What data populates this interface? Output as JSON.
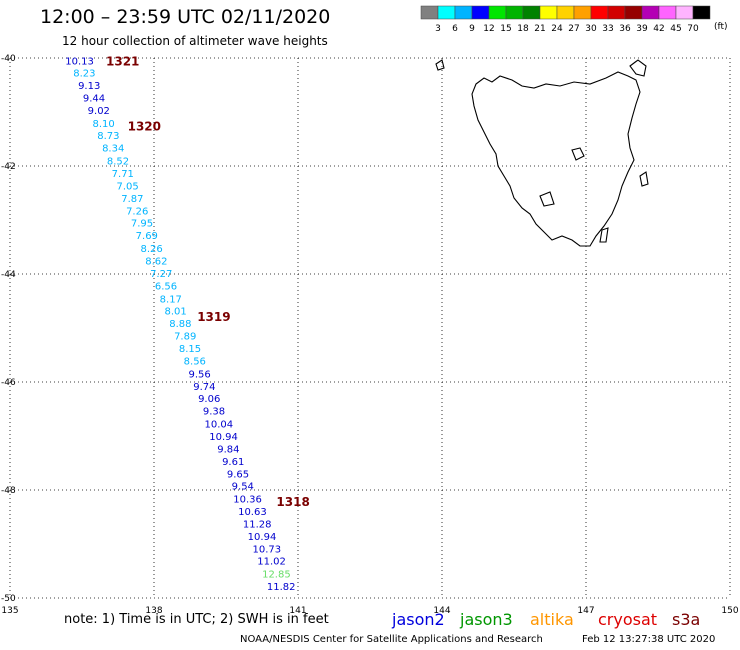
{
  "header": {
    "title": "12:00 – 23:59 UTC 02/11/2020",
    "subtitle": "12 hour collection of altimeter wave heights"
  },
  "colorbar": {
    "colors": [
      "#808080",
      "#00ffff",
      "#00b4ff",
      "#0000ff",
      "#00e600",
      "#00b400",
      "#008200",
      "#ffff00",
      "#ffd200",
      "#ffa000",
      "#ff0000",
      "#d20000",
      "#960000",
      "#b400b4",
      "#ff64ff",
      "#ffb4ff",
      "#000000"
    ],
    "labels": [
      "3",
      "6",
      "9",
      "12",
      "15",
      "18",
      "21",
      "24",
      "27",
      "30",
      "33",
      "36",
      "39",
      "42",
      "45",
      "70"
    ],
    "unit": "(ft)"
  },
  "chart_data": {
    "type": "scatter",
    "xlabel": "",
    "ylabel": "",
    "xlim": [
      135,
      150
    ],
    "ylim": [
      -50,
      -40
    ],
    "xticks": [
      "135",
      "138",
      "141",
      "144",
      "147",
      "150"
    ],
    "yticks": [
      "-40",
      "-42",
      "-44",
      "-46",
      "-48",
      "-50"
    ],
    "grid": true,
    "series": [
      {
        "name": "jason2",
        "points": [
          {
            "lon": 136.45,
            "lat": -40.05,
            "swh": "10.13",
            "color": "#0000cd"
          },
          {
            "lon": 136.55,
            "lat": -40.27,
            "swh": "8.23",
            "color": "#00b4ff"
          },
          {
            "lon": 136.65,
            "lat": -40.5,
            "swh": "9.13",
            "color": "#0000cd"
          },
          {
            "lon": 136.75,
            "lat": -40.73,
            "swh": "9.44",
            "color": "#0000cd"
          },
          {
            "lon": 136.85,
            "lat": -40.96,
            "swh": "9.02",
            "color": "#0000cd"
          },
          {
            "lon": 136.95,
            "lat": -41.2,
            "swh": "8.10",
            "color": "#00b4ff"
          },
          {
            "lon": 137.05,
            "lat": -41.43,
            "swh": "8.73",
            "color": "#00b4ff"
          },
          {
            "lon": 137.15,
            "lat": -41.66,
            "swh": "8.34",
            "color": "#00b4ff"
          },
          {
            "lon": 137.25,
            "lat": -41.9,
            "swh": "8.52",
            "color": "#00b4ff"
          },
          {
            "lon": 137.35,
            "lat": -42.13,
            "swh": "7.71",
            "color": "#00b4ff"
          },
          {
            "lon": 137.45,
            "lat": -42.36,
            "swh": "7.05",
            "color": "#00b4ff"
          },
          {
            "lon": 137.55,
            "lat": -42.59,
            "swh": "7.87",
            "color": "#00b4ff"
          },
          {
            "lon": 137.65,
            "lat": -42.82,
            "swh": "7.26",
            "color": "#00b4ff"
          },
          {
            "lon": 137.75,
            "lat": -43.05,
            "swh": "7.95",
            "color": "#00b4ff"
          },
          {
            "lon": 137.85,
            "lat": -43.28,
            "swh": "7.69",
            "color": "#00b4ff"
          },
          {
            "lon": 137.95,
            "lat": -43.52,
            "swh": "8.26",
            "color": "#00b4ff"
          },
          {
            "lon": 138.05,
            "lat": -43.75,
            "swh": "8.62",
            "color": "#00b4ff"
          },
          {
            "lon": 138.15,
            "lat": -43.98,
            "swh": "7.27",
            "color": "#00b4ff"
          },
          {
            "lon": 138.25,
            "lat": -44.21,
            "swh": "6.56",
            "color": "#00b4ff"
          },
          {
            "lon": 138.35,
            "lat": -44.45,
            "swh": "8.17",
            "color": "#00b4ff"
          },
          {
            "lon": 138.45,
            "lat": -44.68,
            "swh": "8.01",
            "color": "#00b4ff"
          },
          {
            "lon": 138.55,
            "lat": -44.91,
            "swh": "8.88",
            "color": "#00b4ff"
          },
          {
            "lon": 138.65,
            "lat": -45.14,
            "swh": "7.89",
            "color": "#00b4ff"
          },
          {
            "lon": 138.75,
            "lat": -45.37,
            "swh": "8.15",
            "color": "#00b4ff"
          },
          {
            "lon": 138.85,
            "lat": -45.6,
            "swh": "8.56",
            "color": "#00b4ff"
          },
          {
            "lon": 138.95,
            "lat": -45.84,
            "swh": "9.56",
            "color": "#0000cd"
          },
          {
            "lon": 139.05,
            "lat": -46.07,
            "swh": "9.74",
            "color": "#0000cd"
          },
          {
            "lon": 139.15,
            "lat": -46.3,
            "swh": "9.06",
            "color": "#0000cd"
          },
          {
            "lon": 139.25,
            "lat": -46.53,
            "swh": "9.38",
            "color": "#0000cd"
          },
          {
            "lon": 139.35,
            "lat": -46.77,
            "swh": "10.04",
            "color": "#0000cd"
          },
          {
            "lon": 139.45,
            "lat": -47.0,
            "swh": "10.94",
            "color": "#0000cd"
          },
          {
            "lon": 139.55,
            "lat": -47.23,
            "swh": "9.84",
            "color": "#0000cd"
          },
          {
            "lon": 139.65,
            "lat": -47.46,
            "swh": "9.61",
            "color": "#0000cd"
          },
          {
            "lon": 139.75,
            "lat": -47.69,
            "swh": "9.65",
            "color": "#0000cd"
          },
          {
            "lon": 139.85,
            "lat": -47.92,
            "swh": "9.54",
            "color": "#0000cd"
          },
          {
            "lon": 139.95,
            "lat": -48.16,
            "swh": "10.36",
            "color": "#0000cd"
          },
          {
            "lon": 140.05,
            "lat": -48.39,
            "swh": "10.63",
            "color": "#0000cd"
          },
          {
            "lon": 140.15,
            "lat": -48.62,
            "swh": "11.28",
            "color": "#0000cd"
          },
          {
            "lon": 140.25,
            "lat": -48.85,
            "swh": "10.94",
            "color": "#0000cd"
          },
          {
            "lon": 140.35,
            "lat": -49.08,
            "swh": "10.73",
            "color": "#0000cd"
          },
          {
            "lon": 140.45,
            "lat": -49.31,
            "swh": "11.02",
            "color": "#0000cd"
          },
          {
            "lon": 140.55,
            "lat": -49.55,
            "swh": "12.85",
            "color": "#66dd66"
          },
          {
            "lon": 140.65,
            "lat": -49.78,
            "swh": "11.82",
            "color": "#0000cd"
          }
        ]
      }
    ],
    "annotations": [
      {
        "text": "1321",
        "lon": 137.0,
        "lat": -40.05
      },
      {
        "text": "1320",
        "lon": 137.45,
        "lat": -41.25
      },
      {
        "text": "1319",
        "lon": 138.9,
        "lat": -44.78
      },
      {
        "text": "1318",
        "lon": 140.55,
        "lat": -48.2
      }
    ]
  },
  "note": "note: 1) Time is in UTC; 2) SWH is in feet",
  "legend": [
    {
      "label": "jason2",
      "color": "#0000dd"
    },
    {
      "label": "jason3",
      "color": "#009600"
    },
    {
      "label": "altika",
      "color": "#ff9600"
    },
    {
      "label": "cryosat",
      "color": "#dd0000"
    },
    {
      "label": "s3a",
      "color": "#7a0000"
    }
  ],
  "footer": {
    "credit": "NOAA/NESDIS Center for Satellite Applications and Research",
    "timestamp": "Feb 12 13:27:38 UTC 2020"
  }
}
